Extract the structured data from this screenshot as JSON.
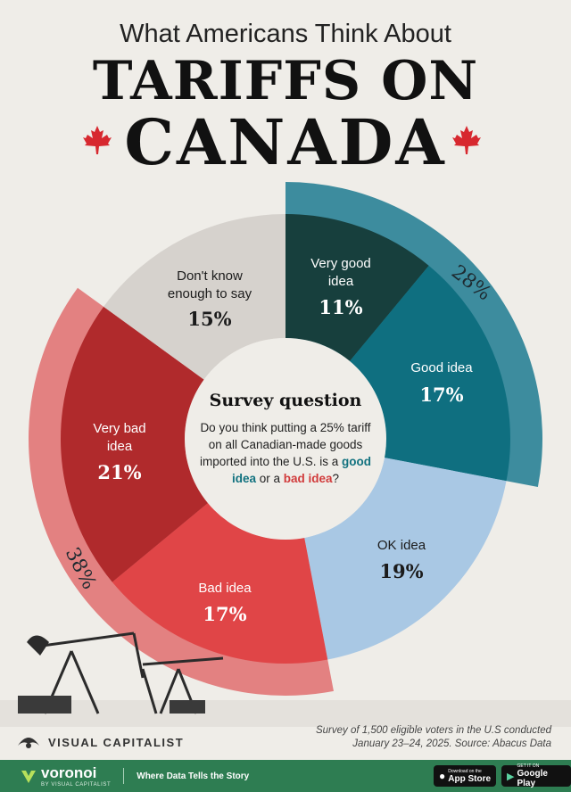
{
  "header": {
    "subtitle": "What Americans Think About",
    "title_line1": "TARIFFS ON",
    "title_line2": "CANADA"
  },
  "center": {
    "title": "Survey question",
    "question_pre": "Do you think putting a 25% tariff on all Canadian-made goods imported into the U.S. is a",
    "good_idea": "good idea",
    "or": "or a",
    "bad_idea": "bad idea",
    "question_end": "?"
  },
  "chart_data": {
    "type": "pie",
    "title": "What Americans Think About TARIFFS ON CANADA",
    "slices": [
      {
        "label": "Very good idea",
        "value": 11,
        "value_label": "11%",
        "color": "#173f3d"
      },
      {
        "label": "Good idea",
        "value": 17,
        "value_label": "17%",
        "color": "#0f6f80"
      },
      {
        "label": "OK idea",
        "value": 19,
        "value_label": "19%",
        "color": "#a9c8e4"
      },
      {
        "label": "Bad idea",
        "value": 17,
        "value_label": "17%",
        "color": "#e04547"
      },
      {
        "label": "Very bad idea",
        "value": 21,
        "value_label": "21%",
        "color": "#b02a2c"
      },
      {
        "label": "Don't know enough to say",
        "value": 15,
        "value_label": "15%",
        "color": "#d6d2cd"
      }
    ],
    "groups": [
      {
        "label": "28%",
        "value": 28,
        "color": "#1d7a90"
      },
      {
        "label": "38%",
        "value": 38,
        "color": "#e06d6f"
      }
    ]
  },
  "labels": {
    "very_good_1": "Very good",
    "very_good_2": "idea",
    "good": "Good idea",
    "ok": "OK idea",
    "bad": "Bad idea",
    "very_bad_1": "Very bad",
    "very_bad_2": "idea",
    "dont_know_1": "Don't know",
    "dont_know_2": "enough to say"
  },
  "footer": {
    "source_line1": "Survey of 1,500 eligible voters in the U.S conducted",
    "source_line2": "January 23–24, 2025. Source: Abacus Data",
    "vc_brand": "VISUAL CAPITALIST",
    "voronoi": "voronoi",
    "voronoi_sub": "BY VISUAL CAPITALIST",
    "tagline": "Where Data Tells the Story",
    "app_store_small": "Download on the",
    "app_store": "App Store",
    "google_small": "GET IT ON",
    "google": "Google Play"
  }
}
